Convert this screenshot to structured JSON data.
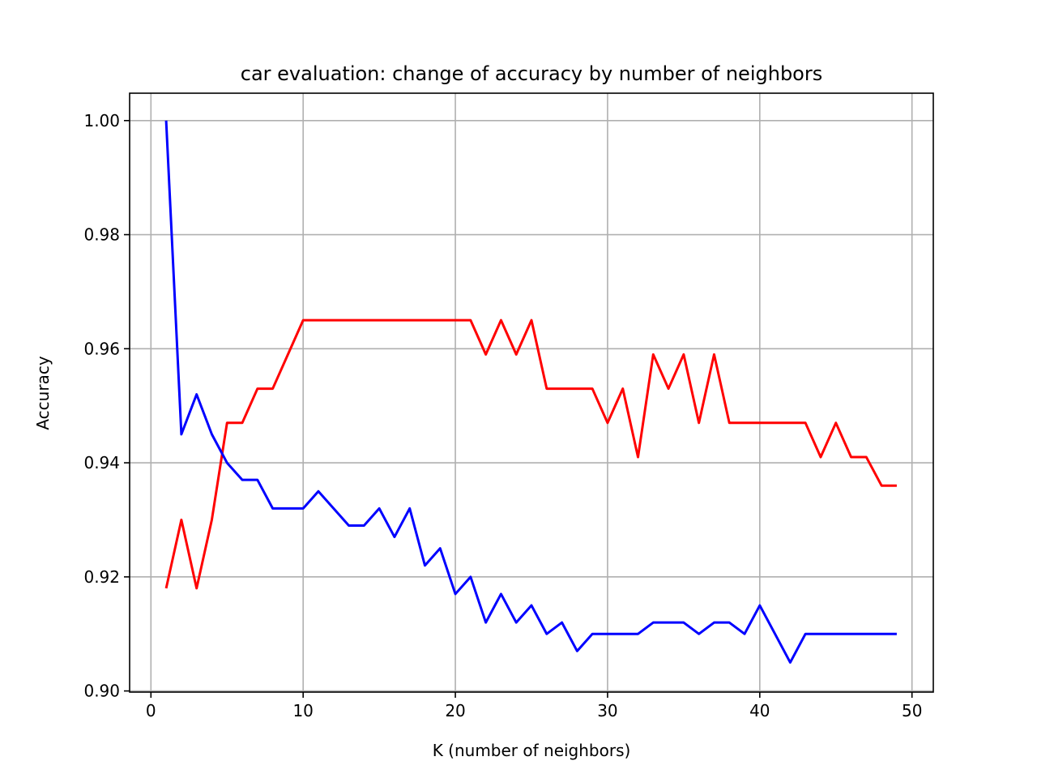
{
  "chart_data": {
    "type": "line",
    "title": "car evaluation: change of accuracy by number of neighbors",
    "xlabel": "K (number of neighbors)",
    "ylabel": "Accuracy",
    "xlim": [
      -1.4,
      51.4
    ],
    "ylim": [
      0.8998,
      1.0048
    ],
    "xticks": [
      0,
      10,
      20,
      30,
      40,
      50
    ],
    "xtick_labels": [
      "0",
      "10",
      "20",
      "30",
      "40",
      "50"
    ],
    "yticks": [
      0.9,
      0.92,
      0.94,
      0.96,
      0.98,
      1.0
    ],
    "ytick_labels": [
      "0.90",
      "0.92",
      "0.94",
      "0.96",
      "0.98",
      "1.00"
    ],
    "grid": true,
    "x": [
      1,
      2,
      3,
      4,
      5,
      6,
      7,
      8,
      9,
      10,
      11,
      12,
      13,
      14,
      15,
      16,
      17,
      18,
      19,
      20,
      21,
      22,
      23,
      24,
      25,
      26,
      27,
      28,
      29,
      30,
      31,
      32,
      33,
      34,
      35,
      36,
      37,
      38,
      39,
      40,
      41,
      42,
      43,
      44,
      45,
      46,
      47,
      48,
      49
    ],
    "series": [
      {
        "color": "#ff0000",
        "values": [
          0.918,
          0.93,
          0.918,
          0.93,
          0.947,
          0.947,
          0.953,
          0.953,
          0.959,
          0.965,
          0.965,
          0.965,
          0.965,
          0.965,
          0.965,
          0.965,
          0.965,
          0.965,
          0.965,
          0.965,
          0.965,
          0.959,
          0.965,
          0.959,
          0.965,
          0.953,
          0.953,
          0.953,
          0.953,
          0.947,
          0.953,
          0.941,
          0.959,
          0.953,
          0.959,
          0.947,
          0.959,
          0.947,
          0.947,
          0.947,
          0.947,
          0.947,
          0.947,
          0.941,
          0.947,
          0.941,
          0.941,
          0.936,
          0.936
        ]
      },
      {
        "color": "#0000ff",
        "values": [
          1.0,
          0.945,
          0.952,
          0.945,
          0.94,
          0.937,
          0.937,
          0.932,
          0.932,
          0.932,
          0.935,
          0.932,
          0.929,
          0.929,
          0.932,
          0.927,
          0.932,
          0.922,
          0.925,
          0.917,
          0.92,
          0.912,
          0.917,
          0.912,
          0.915,
          0.91,
          0.912,
          0.907,
          0.91,
          0.91,
          0.91,
          0.91,
          0.912,
          0.912,
          0.912,
          0.91,
          0.912,
          0.912,
          0.91,
          0.915,
          0.91,
          0.905,
          0.91,
          0.91,
          0.91,
          0.91,
          0.91,
          0.91,
          0.91
        ]
      }
    ]
  }
}
